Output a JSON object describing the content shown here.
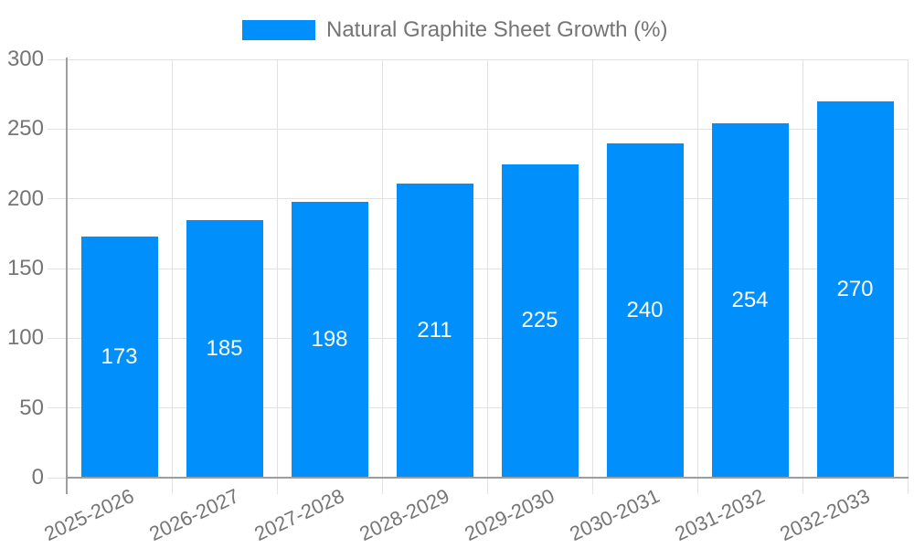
{
  "legend": {
    "label": "Natural Graphite Sheet Growth (%)"
  },
  "chart_data": {
    "type": "bar",
    "title": "Natural Graphite Sheet Growth (%)",
    "xlabel": "",
    "ylabel": "",
    "categories": [
      "2025-2026",
      "2026-2027",
      "2027-2028",
      "2028-2029",
      "2029-2030",
      "2030-2031",
      "2031-2032",
      "2032-2033"
    ],
    "values": [
      173,
      185,
      198,
      211,
      225,
      240,
      254,
      270
    ],
    "ylim": [
      0,
      300
    ],
    "yticks": [
      0,
      50,
      100,
      150,
      200,
      250,
      300
    ],
    "grid": true,
    "legend_position": "top-center",
    "bar_label_position": "center-inside",
    "colors": {
      "bar": "#008FFB",
      "axis_line": "#9E9E9E",
      "gridline": "#E2E2E2",
      "tick_label": "#757575",
      "legend_text": "#757575",
      "bar_value_label": "#FFFFFF",
      "background": "#FFFFFF"
    }
  }
}
